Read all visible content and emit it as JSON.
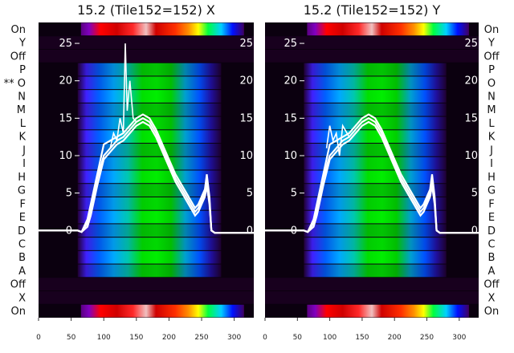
{
  "chart_data": [
    {
      "type": "heatmap",
      "title": "15.2 (Tile152=152) X",
      "xlim": [
        0,
        330
      ],
      "xticks": [
        0,
        50,
        100,
        150,
        200,
        250,
        300
      ],
      "overlay_yticks": [
        0,
        5,
        10,
        15,
        20,
        25
      ],
      "row_labels": [
        "On",
        "Y",
        "Off",
        "P",
        "O",
        "N",
        "M",
        "L",
        "K",
        "J",
        "I",
        "H",
        "G",
        "F",
        "E",
        "D",
        "C",
        "B",
        "A",
        "Off",
        "X",
        "On"
      ],
      "row_label_side": "left",
      "marked_row": "O",
      "marked_row_prefix": "**",
      "spectrum_rows": [
        "On",
        "On"
      ],
      "spectrum_x_range": [
        65,
        315
      ],
      "signal_rows": [
        "P",
        "O",
        "N",
        "M",
        "L",
        "K",
        "J",
        "I",
        "H",
        "G",
        "F",
        "E",
        "D",
        "C",
        "B",
        "A"
      ],
      "signal_x_range": [
        60,
        280
      ],
      "overlay_lines": [
        {
          "x": [
            0,
            60,
            66,
            75,
            80,
            90,
            100,
            110,
            120,
            130,
            140,
            150,
            160,
            170,
            180,
            190,
            200,
            210,
            220,
            230,
            240,
            245,
            250,
            255,
            258,
            262,
            265,
            270,
            280,
            330
          ],
          "y": [
            0,
            0,
            -0.2,
            1.0,
            3.0,
            7.0,
            10.0,
            11.0,
            12.0,
            12.5,
            13.5,
            14.5,
            15.0,
            14.5,
            13.0,
            11.0,
            9.0,
            7.0,
            5.5,
            4.0,
            2.5,
            3.0,
            4.0,
            5.0,
            7.0,
            4.0,
            0.0,
            -0.3,
            -0.3,
            -0.3
          ]
        },
        {
          "x": [
            0,
            60,
            66,
            75,
            80,
            90,
            100,
            110,
            120,
            130,
            140,
            150,
            160,
            170,
            180,
            190,
            200,
            210,
            220,
            230,
            240,
            245,
            250,
            255,
            258,
            262,
            265,
            270,
            280,
            330
          ],
          "y": [
            0,
            0,
            -0.2,
            0.5,
            2.0,
            6.0,
            9.5,
            10.5,
            11.5,
            12.0,
            13.0,
            14.0,
            14.5,
            14.0,
            12.5,
            10.5,
            8.5,
            6.5,
            5.0,
            3.5,
            2.0,
            2.5,
            3.5,
            4.5,
            6.0,
            3.5,
            0.0,
            -0.3,
            -0.3,
            -0.3
          ]
        },
        {
          "x": [
            0,
            60,
            66,
            75,
            80,
            90,
            100,
            110,
            120,
            130,
            140,
            150,
            160,
            170,
            180,
            190,
            200,
            210,
            220,
            230,
            240,
            245,
            250,
            255,
            258,
            262,
            265,
            270,
            280,
            330
          ],
          "y": [
            0,
            0,
            -0.2,
            1.5,
            3.5,
            7.5,
            11.5,
            12.0,
            12.5,
            13.0,
            14.0,
            15.0,
            15.5,
            15.0,
            13.5,
            11.5,
            9.5,
            7.5,
            6.0,
            4.5,
            3.0,
            3.5,
            4.5,
            5.5,
            7.5,
            4.5,
            0.0,
            -0.3,
            -0.3,
            -0.3
          ]
        },
        {
          "x": [
            110,
            115,
            120,
            125,
            130,
            133,
            136,
            140,
            145,
            150
          ],
          "y": [
            11.0,
            13.0,
            12.0,
            15.0,
            13.0,
            25.0,
            16.0,
            20.0,
            15.0,
            14.5
          ]
        }
      ]
    },
    {
      "type": "heatmap",
      "title": "15.2 (Tile152=152) Y",
      "xlim": [
        0,
        330
      ],
      "xticks": [
        0,
        50,
        100,
        150,
        200,
        250,
        300
      ],
      "overlay_yticks": [
        0,
        5,
        10,
        15,
        20,
        25
      ],
      "row_labels": [
        "On",
        "Y",
        "Off",
        "P",
        "O",
        "N",
        "M",
        "L",
        "K",
        "J",
        "I",
        "H",
        "G",
        "F",
        "E",
        "D",
        "C",
        "B",
        "A",
        "Off",
        "X",
        "On"
      ],
      "row_label_side": "right",
      "spectrum_rows": [
        "On",
        "On"
      ],
      "spectrum_x_range": [
        65,
        315
      ],
      "signal_rows": [
        "P",
        "O",
        "N",
        "M",
        "L",
        "K",
        "J",
        "I",
        "H",
        "G",
        "F",
        "E",
        "D",
        "C",
        "B",
        "A"
      ],
      "signal_x_range": [
        60,
        280
      ],
      "overlay_lines": [
        {
          "x": [
            0,
            60,
            66,
            75,
            80,
            90,
            100,
            110,
            120,
            130,
            140,
            150,
            160,
            170,
            180,
            190,
            200,
            210,
            220,
            230,
            240,
            245,
            250,
            255,
            258,
            262,
            265,
            270,
            280,
            330
          ],
          "y": [
            0,
            0,
            -0.2,
            1.0,
            3.0,
            7.0,
            10.0,
            11.0,
            12.0,
            12.5,
            13.5,
            14.5,
            15.0,
            14.5,
            13.0,
            11.0,
            9.0,
            7.0,
            5.5,
            4.0,
            2.5,
            3.0,
            4.0,
            5.0,
            7.0,
            4.0,
            0.0,
            -0.3,
            -0.3,
            -0.3
          ]
        },
        {
          "x": [
            0,
            60,
            66,
            75,
            80,
            90,
            100,
            110,
            120,
            130,
            140,
            150,
            160,
            170,
            180,
            190,
            200,
            210,
            220,
            230,
            240,
            245,
            250,
            255,
            258,
            262,
            265,
            270,
            280,
            330
          ],
          "y": [
            0,
            0,
            -0.2,
            0.5,
            2.0,
            6.0,
            9.5,
            10.5,
            11.5,
            12.0,
            13.0,
            14.0,
            14.5,
            14.0,
            12.5,
            10.5,
            8.5,
            6.5,
            5.0,
            3.5,
            2.0,
            2.5,
            3.5,
            4.5,
            6.0,
            3.5,
            0.0,
            -0.3,
            -0.3,
            -0.3
          ]
        },
        {
          "x": [
            0,
            60,
            66,
            75,
            80,
            90,
            100,
            110,
            120,
            130,
            140,
            150,
            160,
            170,
            180,
            190,
            200,
            210,
            220,
            230,
            240,
            245,
            250,
            255,
            258,
            262,
            265,
            270,
            280,
            330
          ],
          "y": [
            0,
            0,
            -0.2,
            1.5,
            3.5,
            7.5,
            11.5,
            12.0,
            12.5,
            13.0,
            14.0,
            15.0,
            15.5,
            15.0,
            13.5,
            11.5,
            9.5,
            7.5,
            6.0,
            4.5,
            3.0,
            3.5,
            4.5,
            5.5,
            7.5,
            4.5,
            0.0,
            -0.3,
            -0.3,
            -0.3
          ]
        },
        {
          "x": [
            95,
            100,
            105,
            110,
            115,
            120,
            130,
            140,
            145,
            150
          ],
          "y": [
            11.0,
            14.0,
            12.0,
            13.0,
            10.0,
            14.0,
            12.5,
            13.5,
            14.0,
            14.5
          ]
        }
      ]
    }
  ],
  "colors": {
    "background": "#000000",
    "overlay_line": "#ffffff",
    "spectrum": [
      "#5a0080",
      "#1c00ff",
      "#00b4ff",
      "#00ff40",
      "#ffff00",
      "#ff8000",
      "#ff0000",
      "#cc0000",
      "#ffffff"
    ],
    "signal": [
      "#2a0040",
      "#3a2aff",
      "#0078ff",
      "#00b0ff",
      "#00d8a0",
      "#00d000",
      "#00e000"
    ]
  }
}
